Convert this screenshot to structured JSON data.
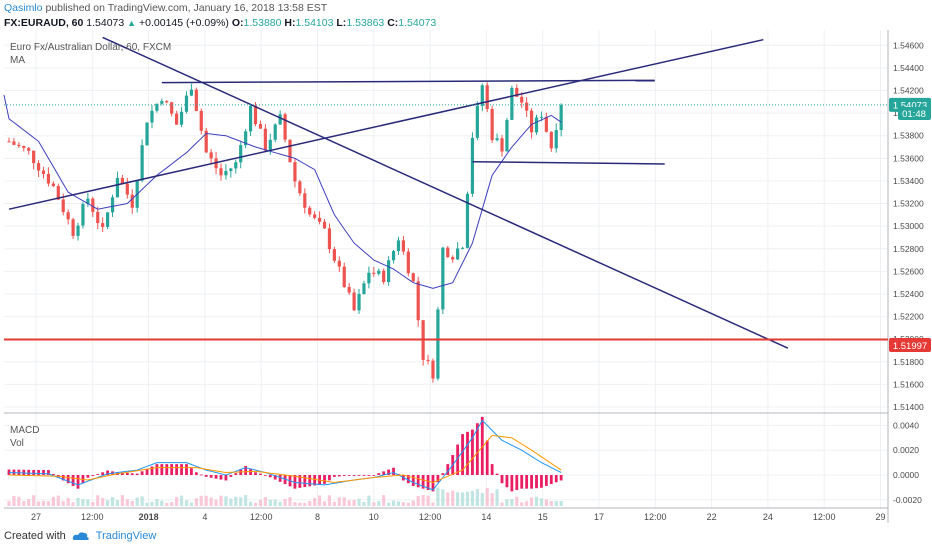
{
  "header": {
    "author": "Qasimlo",
    "published_text": "published on TradingView.com, January 16, 2018 13:58 EST",
    "symbol": "FX:EURAUD, 60",
    "last": "1.54073",
    "change": "+0.00145 (+0.09%)",
    "o_label": "O:",
    "o": "1.53880",
    "h_label": "H:",
    "h": "1.54103",
    "l_label": "L:",
    "l": "1.53863",
    "c_label": "C:",
    "c": "1.54073"
  },
  "chart_labels": {
    "title": "Euro Fx/Australian Dollar, 60, FXCM",
    "indicator": "MA",
    "macd": "MACD",
    "vol": "Vol",
    "price_badge": "1.54073",
    "countdown": "01:48",
    "support_badge": "1.51997"
  },
  "footer": {
    "created_with": "Created with",
    "brand": "TradingView"
  },
  "colors": {
    "up": "#26a69a",
    "down": "#ef5350",
    "ma": "#3f3fbf",
    "trendline": "#2a2a7a",
    "support": "#e53935",
    "macd": "#2196f3",
    "signal": "#ff9800",
    "hist": "#e91e63"
  },
  "chart_data": {
    "type": "candlestick",
    "price_axis": {
      "min": 1.514,
      "max": 1.547,
      "ticks": [
        "1.54600",
        "1.54400",
        "1.54200",
        "1.54000",
        "1.53800",
        "1.53600",
        "1.53400",
        "1.53200",
        "1.53000",
        "1.52800",
        "1.52600",
        "1.52400",
        "1.52200",
        "1.52000",
        "1.51800",
        "1.51600",
        "1.51400"
      ]
    },
    "time_axis": [
      "27",
      "12:00",
      "2018",
      "4",
      "12:00",
      "8",
      "10",
      "12:00",
      "14",
      "15",
      "17",
      "12:00",
      "22",
      "24",
      "12:00",
      "29"
    ],
    "macd_axis": {
      "min": -0.0025,
      "max": 0.0046,
      "ticks": [
        "0.0040",
        "0.0020",
        "0.0000",
        "-0.0020"
      ]
    },
    "support_level": 1.51997,
    "last_price": 1.54073,
    "trendlines": [
      {
        "name": "ascending",
        "from": [
          0,
          1.5315
        ],
        "to": [
          153,
          1.5465
        ]
      },
      {
        "name": "descending",
        "from": [
          19,
          1.5467
        ],
        "to": [
          158,
          1.5192
        ]
      },
      {
        "name": "resistance",
        "from": [
          31,
          1.5427
        ],
        "to": [
          131,
          1.5429
        ]
      },
      {
        "name": "range-low",
        "from": [
          94,
          1.5357
        ],
        "to": [
          133,
          1.5355
        ]
      }
    ],
    "price_anchors": [
      [
        0,
        1.5375
      ],
      [
        4,
        1.5365
      ],
      [
        9,
        1.5335
      ],
      [
        13,
        1.5295
      ],
      [
        16,
        1.5325
      ],
      [
        19,
        1.5295
      ],
      [
        22,
        1.5345
      ],
      [
        25,
        1.532
      ],
      [
        28,
        1.5395
      ],
      [
        31,
        1.5415
      ],
      [
        34,
        1.539
      ],
      [
        37,
        1.5425
      ],
      [
        40,
        1.5365
      ],
      [
        43,
        1.5345
      ],
      [
        46,
        1.5355
      ],
      [
        49,
        1.5405
      ],
      [
        52,
        1.537
      ],
      [
        55,
        1.5395
      ],
      [
        58,
        1.534
      ],
      [
        61,
        1.531
      ],
      [
        64,
        1.5295
      ],
      [
        67,
        1.526
      ],
      [
        70,
        1.5225
      ],
      [
        73,
        1.526
      ],
      [
        76,
        1.5255
      ],
      [
        79,
        1.529
      ],
      [
        82,
        1.525
      ],
      [
        84,
        1.5185
      ],
      [
        86,
        1.517
      ],
      [
        88,
        1.528
      ],
      [
        90,
        1.5275
      ],
      [
        92,
        1.5285
      ],
      [
        94,
        1.538
      ],
      [
        96,
        1.5425
      ],
      [
        98,
        1.538
      ],
      [
        100,
        1.537
      ],
      [
        102,
        1.542
      ],
      [
        104,
        1.541
      ],
      [
        106,
        1.5385
      ],
      [
        108,
        1.54
      ],
      [
        110,
        1.537
      ],
      [
        111,
        1.539
      ],
      [
        112,
        1.5407
      ]
    ],
    "ma_anchors": [
      [
        0,
        1.5395
      ],
      [
        6,
        1.5375
      ],
      [
        12,
        1.533
      ],
      [
        18,
        1.5315
      ],
      [
        24,
        1.532
      ],
      [
        30,
        1.5345
      ],
      [
        36,
        1.5365
      ],
      [
        40,
        1.5382
      ],
      [
        44,
        1.538
      ],
      [
        50,
        1.537
      ],
      [
        54,
        1.5365
      ],
      [
        58,
        1.536
      ],
      [
        62,
        1.535
      ],
      [
        66,
        1.531
      ],
      [
        70,
        1.5285
      ],
      [
        74,
        1.527
      ],
      [
        78,
        1.5262
      ],
      [
        82,
        1.525
      ],
      [
        86,
        1.5245
      ],
      [
        90,
        1.525
      ],
      [
        94,
        1.5285
      ],
      [
        98,
        1.5345
      ],
      [
        102,
        1.537
      ],
      [
        106,
        1.539
      ],
      [
        110,
        1.5398
      ],
      [
        112,
        1.5392
      ]
    ],
    "macd_anchors": [
      [
        0,
        0.0002
      ],
      [
        8,
        0.0001
      ],
      [
        14,
        -0.0008
      ],
      [
        20,
        0.0001
      ],
      [
        26,
        0.0004
      ],
      [
        30,
        0.001
      ],
      [
        36,
        0.001
      ],
      [
        40,
        0.0004
      ],
      [
        44,
        0.0
      ],
      [
        48,
        0.0006
      ],
      [
        52,
        0.0002
      ],
      [
        58,
        -0.0006
      ],
      [
        64,
        -0.0008
      ],
      [
        70,
        -0.0004
      ],
      [
        74,
        -0.0002
      ],
      [
        78,
        0.0002
      ],
      [
        82,
        -0.0006
      ],
      [
        86,
        -0.0012
      ],
      [
        90,
        0.0008
      ],
      [
        94,
        0.003
      ],
      [
        96,
        0.0044
      ],
      [
        100,
        0.0028
      ],
      [
        104,
        0.002
      ],
      [
        108,
        0.001
      ],
      [
        112,
        0.0002
      ]
    ],
    "signal_anchors": [
      [
        0,
        0.0
      ],
      [
        10,
        -0.0001
      ],
      [
        16,
        -0.0004
      ],
      [
        22,
        0.0001
      ],
      [
        30,
        0.0006
      ],
      [
        38,
        0.0006
      ],
      [
        44,
        0.0002
      ],
      [
        50,
        0.0003
      ],
      [
        58,
        -0.0001
      ],
      [
        66,
        -0.0006
      ],
      [
        74,
        -0.0002
      ],
      [
        80,
        0.0
      ],
      [
        86,
        -0.0006
      ],
      [
        92,
        0.0004
      ],
      [
        98,
        0.0032
      ],
      [
        102,
        0.003
      ],
      [
        106,
        0.002
      ],
      [
        112,
        0.0004
      ]
    ]
  }
}
